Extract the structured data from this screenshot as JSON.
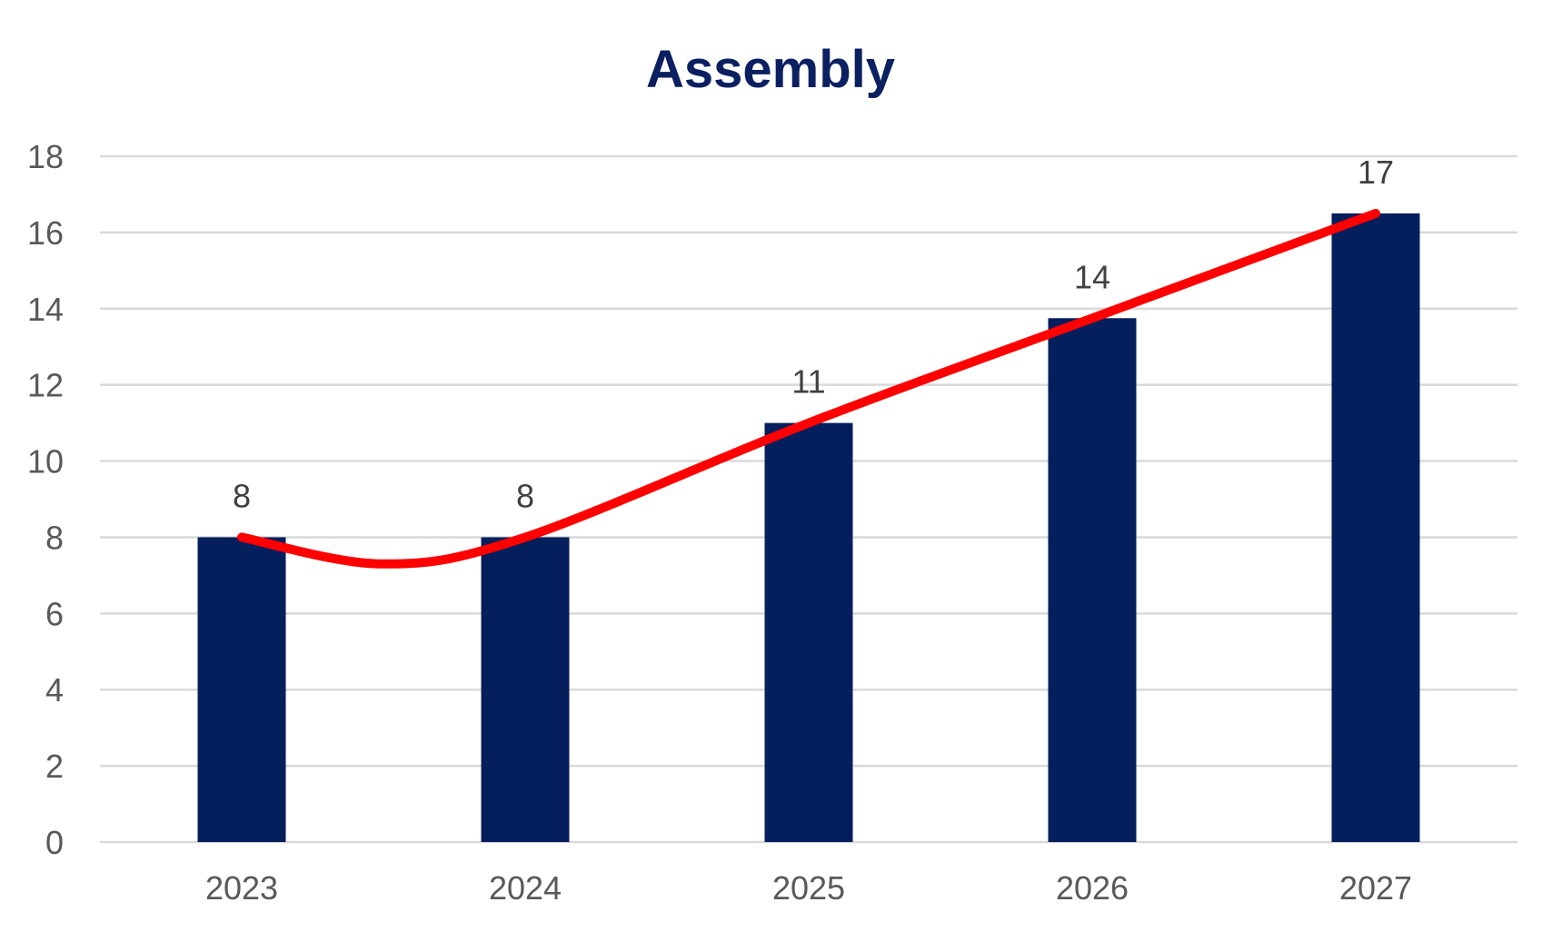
{
  "chart_data": {
    "type": "bar",
    "title": "Assembly",
    "xlabel": "",
    "ylabel": "",
    "categories": [
      "2023",
      "2024",
      "2025",
      "2026",
      "2027"
    ],
    "values": [
      8,
      8,
      11,
      13.75,
      16.5
    ],
    "data_labels": [
      "8",
      "8",
      "11",
      "14",
      "17"
    ],
    "y_ticks": [
      "0",
      "2",
      "4",
      "6",
      "8",
      "10",
      "12",
      "14",
      "16",
      "18"
    ],
    "ylim": [
      0,
      18
    ],
    "grid": true,
    "legend": "none",
    "overlay_curve": {
      "type": "line",
      "smooth": true,
      "points": [
        {
          "x": "2023",
          "y": 8
        },
        {
          "x": "2023.5",
          "y": 7.3
        },
        {
          "x": "2024",
          "y": 8
        },
        {
          "x": "2025",
          "y": 11
        },
        {
          "x": "2026",
          "y": 13.75
        },
        {
          "x": "2027",
          "y": 16.5
        }
      ]
    }
  },
  "colors": {
    "bar": "#041f5c",
    "title": "#0b2060",
    "curve": "#ff0000",
    "grid": "#d9d9d9",
    "tick_text": "#595959",
    "data_label_text": "#404040"
  }
}
